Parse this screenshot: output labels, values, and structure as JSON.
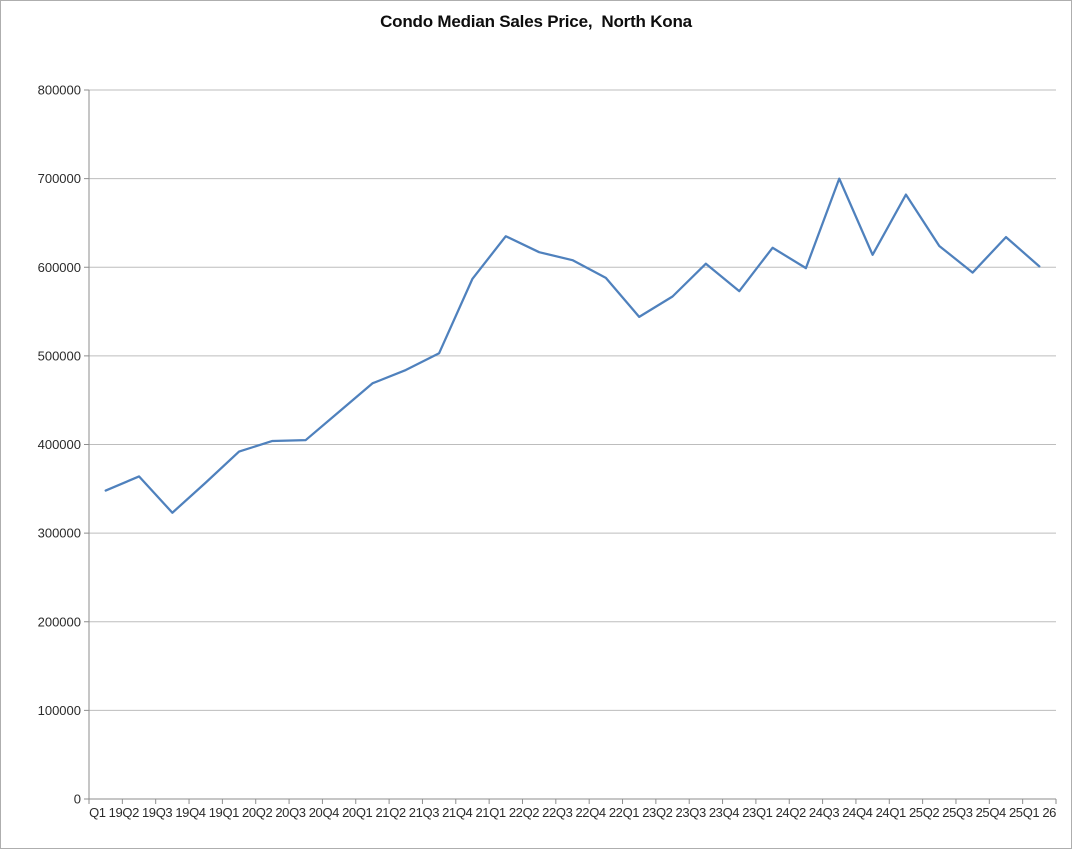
{
  "window": {
    "background_color": "#ffffff",
    "border_color": "#aeaeae"
  },
  "chart_data": {
    "type": "line",
    "title": "Condo Median Sales Price,  North Kona",
    "xlabel": "",
    "ylabel": "",
    "legend": "none",
    "grid": "horizontal",
    "ylim": [
      0,
      800000
    ],
    "ytick_step": 100000,
    "yticks": [
      0,
      100000,
      200000,
      300000,
      400000,
      500000,
      600000,
      700000,
      800000
    ],
    "ytick_labels": [
      "0",
      "100000",
      "200000",
      "300000",
      "400000",
      "500000",
      "600000",
      "700000",
      "800000"
    ],
    "categories": [
      "Q1 19",
      "Q2 19",
      "Q3 19",
      "Q4 19",
      "Q1 20",
      "Q2 20",
      "Q3 20",
      "Q4 20",
      "Q1 21",
      "Q2 21",
      "Q3 21",
      "Q4 21",
      "Q1 22",
      "Q2 22",
      "Q3 22",
      "Q4 22",
      "Q1 23",
      "Q2 23",
      "Q3 23",
      "Q4 23",
      "Q1 24",
      "Q2 24",
      "Q3 24",
      "Q4 24",
      "Q1 25",
      "Q2 25",
      "Q3 25",
      "Q4 25",
      "Q1 26"
    ],
    "series": [
      {
        "values": [
          348000,
          364000,
          323000,
          357000,
          392000,
          404000,
          405000,
          437000,
          469000,
          484000,
          503000,
          587000,
          635000,
          617000,
          608000,
          588000,
          544000,
          567000,
          604000,
          573000,
          622000,
          599000,
          700000,
          614000,
          682000,
          624000,
          594000,
          634000,
          601000
        ]
      }
    ],
    "colors": {
      "line": "#4F81BD",
      "gridline": "#bdbdbd",
      "axis": "#8e8e8e",
      "tick_label": "#2b2b2b",
      "title": "#0d0d0d"
    }
  }
}
